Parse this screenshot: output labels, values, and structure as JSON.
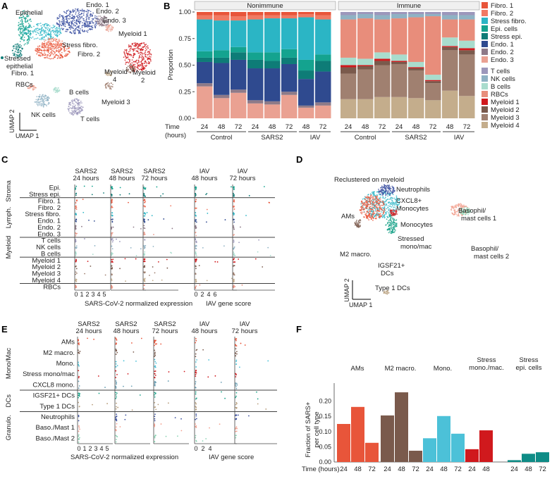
{
  "colors": {
    "Fibro. 1": "#e8553a",
    "Fibro. 2": "#f07a63",
    "Stress fibro.": "#2bb5c5",
    "Epi. cells": "#14a38f",
    "Stress epi.": "#0e7c77",
    "Endo. 1": "#2f4a8f",
    "Endo. 2": "#8e7a88",
    "Endo. 3": "#eaa192",
    "T cells": "#9c97bb",
    "NK cells": "#8fb2c4",
    "B cells": "#a9dccd",
    "RBCs": "#e88d7b",
    "Myeloid 1": "#d0191d",
    "Myeloid 2": "#7a5a4c",
    "Myeloid 3": "#a08070",
    "Myeloid 4": "#c4ad8c"
  },
  "panelA": {
    "letter": "A",
    "labels": [
      "Epithelial",
      "Stressed epithelial",
      "Endo. 1",
      "Endo. 2",
      "Endo. 3",
      "Stress fibro.",
      "Fibro. 2",
      "Myeloid 1",
      "Fibro. 1",
      "RBCs",
      "B cells",
      "Myeloid 4",
      "Myeloid 2",
      "Myeloid 3",
      "NK cells",
      "T cells"
    ],
    "axis_y": "UMAP 2",
    "axis_x": "UMAP 1"
  },
  "chart_data": [
    {
      "panel": "B",
      "type": "bar",
      "stacked": true,
      "ylabel": "Proportion",
      "yticks": [
        "0.00",
        "0.25",
        "0.50",
        "0.75",
        "1.00"
      ],
      "ylim": [
        0,
        1
      ],
      "facets": [
        "Nonimmune",
        "Immune"
      ],
      "time_label": "Time (hours)",
      "categories": [
        "24",
        "48",
        "72",
        "24",
        "48",
        "72",
        "48",
        "72"
      ],
      "groups": [
        "Control",
        "SARS2",
        "IAV"
      ],
      "nonimmune_series": [
        "Fibro. 1",
        "Fibro. 2",
        "Stress fibro.",
        "Epi. cells",
        "Stress epi.",
        "Endo. 1",
        "Endo. 2",
        "Endo. 3"
      ],
      "nonimmune_bottom_up": [
        "Endo. 3",
        "Endo. 2",
        "Endo. 1",
        "Stress epi.",
        "Epi. cells",
        "Stress fibro.",
        "Fibro. 2",
        "Fibro. 1"
      ],
      "nonimmune_values": [
        [
          0.03,
          0.04,
          0.3,
          0.06,
          0.04,
          0.2,
          0.03,
          0.3
        ],
        [
          0.03,
          0.05,
          0.28,
          0.07,
          0.05,
          0.3,
          0.03,
          0.19
        ],
        [
          0.04,
          0.04,
          0.25,
          0.05,
          0.07,
          0.28,
          0.03,
          0.24
        ],
        [
          0.03,
          0.04,
          0.31,
          0.07,
          0.08,
          0.3,
          0.03,
          0.14
        ],
        [
          0.03,
          0.03,
          0.32,
          0.08,
          0.07,
          0.31,
          0.03,
          0.13
        ],
        [
          0.03,
          0.03,
          0.29,
          0.08,
          0.06,
          0.26,
          0.03,
          0.22
        ],
        [
          0.02,
          0.03,
          0.4,
          0.1,
          0.08,
          0.25,
          0.02,
          0.1
        ],
        [
          0.03,
          0.04,
          0.33,
          0.06,
          0.1,
          0.29,
          0.03,
          0.12
        ]
      ],
      "immune_series": [
        "T cells",
        "NK cells",
        "B cells",
        "RBCs",
        "Myeloid 1",
        "Myeloid 2",
        "Myeloid 3",
        "Myeloid 4"
      ],
      "immune_bottom_up": [
        "Myeloid 4",
        "Myeloid 3",
        "Myeloid 2",
        "Myeloid 1",
        "B cells",
        "RBCs",
        "NK cells",
        "T cells"
      ],
      "immune_values": [
        [
          0.03,
          0.04,
          0.07,
          0.36,
          0.02,
          0.06,
          0.24,
          0.18
        ],
        [
          0.02,
          0.04,
          0.06,
          0.38,
          0.01,
          0.03,
          0.28,
          0.18
        ],
        [
          0.03,
          0.04,
          0.06,
          0.31,
          0.02,
          0.04,
          0.3,
          0.2
        ],
        [
          0.02,
          0.04,
          0.06,
          0.34,
          0.01,
          0.02,
          0.31,
          0.2
        ],
        [
          0.02,
          0.03,
          0.05,
          0.42,
          0.01,
          0.02,
          0.26,
          0.19
        ],
        [
          0.02,
          0.02,
          0.05,
          0.55,
          0.01,
          0.02,
          0.16,
          0.17
        ],
        [
          0.03,
          0.04,
          0.08,
          0.17,
          0.01,
          0.03,
          0.38,
          0.26
        ],
        [
          0.03,
          0.04,
          0.07,
          0.2,
          0.02,
          0.04,
          0.39,
          0.21
        ]
      ]
    },
    {
      "panel": "C",
      "type": "scatter",
      "sars_columns": [
        "SARS2 24 hours",
        "SARS2 48 hours",
        "SARS2 72 hours"
      ],
      "iav_columns": [
        "IAV 48 hours",
        "IAV 72 hours"
      ],
      "rows": [
        "Epi.",
        "Stress epi.",
        "Fibro. 1",
        "Fibro. 2",
        "Stress fibro.",
        "Endo. 1",
        "Endo. 2",
        "Endo. 3",
        "T cells",
        "NK cells",
        "B cells",
        "Myeloid 1",
        "Myeloid 2",
        "Myeloid 3",
        "Myeloid 4",
        "RBCs"
      ],
      "groups": [
        "Stroma",
        "Lymph.",
        "Myeloid"
      ],
      "sars_ticks": [
        "0",
        "1",
        "2",
        "3",
        "4",
        "5"
      ],
      "iav_ticks": [
        "0",
        "2",
        "4",
        "6"
      ],
      "xlabel_sars": "SARS-CoV-2 normalized expression",
      "xlabel_iav": "IAV gene score"
    },
    {
      "panel": "E",
      "type": "scatter",
      "sars_columns": [
        "SARS2 24 hours",
        "SARS2 48 hours",
        "SARS2 72 hours"
      ],
      "iav_columns": [
        "IAV 48 hours",
        "IAV 72 hours"
      ],
      "rows": [
        "AMs",
        "M2 macro.",
        "Mono.",
        "Stress mono/mac",
        "CXCL8 mono.",
        "IGSF21+ DCs",
        "Type 1 DCs",
        "Neutrophils",
        "Baso./Mast 1",
        "Baso./Mast 2"
      ],
      "groups": [
        "Mono/Mac",
        "DCs",
        "Granulo."
      ],
      "sars_ticks": [
        "0",
        "1",
        "2",
        "3",
        "4",
        "5"
      ],
      "iav_ticks": [
        "0",
        "2",
        "4"
      ],
      "xlabel_sars": "SARS-CoV-2 normalized expression",
      "xlabel_iav": "IAV gene score"
    },
    {
      "panel": "F",
      "type": "bar",
      "ylabel": "Fraction of SARS+ per cell type",
      "yticks": [
        "0.00",
        "0.05",
        "0.10",
        "0.15",
        "0.20"
      ],
      "ylim": [
        0,
        0.25
      ],
      "xlabel": "Time (hours)",
      "series": [
        {
          "name": "AMs",
          "values": [
            0.125,
            0.181,
            0.063
          ],
          "times": [
            "24",
            "48",
            "72"
          ],
          "color": "#e8553a"
        },
        {
          "name": "M2 macro.",
          "values": [
            0.153,
            0.229,
            0.037
          ],
          "times": [
            "24",
            "48",
            "72"
          ],
          "color": "#7a5a4c"
        },
        {
          "name": "Mono.",
          "values": [
            0.078,
            0.151,
            0.093
          ],
          "times": [
            "24",
            "48",
            "72"
          ],
          "color": "#4cc1d8"
        },
        {
          "name": "Stress mono./mac.",
          "values": [
            0.042,
            0.104
          ],
          "times": [
            "24",
            "48"
          ],
          "color": "#d0191d"
        },
        {
          "name": "Stress epi. cells",
          "values": [
            0.006,
            0.027,
            0.032
          ],
          "times": [
            "24",
            "48",
            "72"
          ],
          "color": "#0e8c86"
        }
      ]
    }
  ],
  "panelD": {
    "letter": "D",
    "title": "Reclustered on myeloid",
    "labels": [
      "Neutrophils",
      "CXCL8+ Monocytes",
      "AMs",
      "Monocytes",
      "Stressed mono/mac",
      "M2 macro.",
      "IGSF21+ DCs",
      "Basophil/ mast cells 1",
      "Basophil/ mast cells 2",
      "Type 1 DCs"
    ],
    "axis_y": "UMAP 2",
    "axis_x": "UMAP 1"
  },
  "letters": {
    "B": "B",
    "C": "C",
    "E": "E",
    "F": "F"
  }
}
